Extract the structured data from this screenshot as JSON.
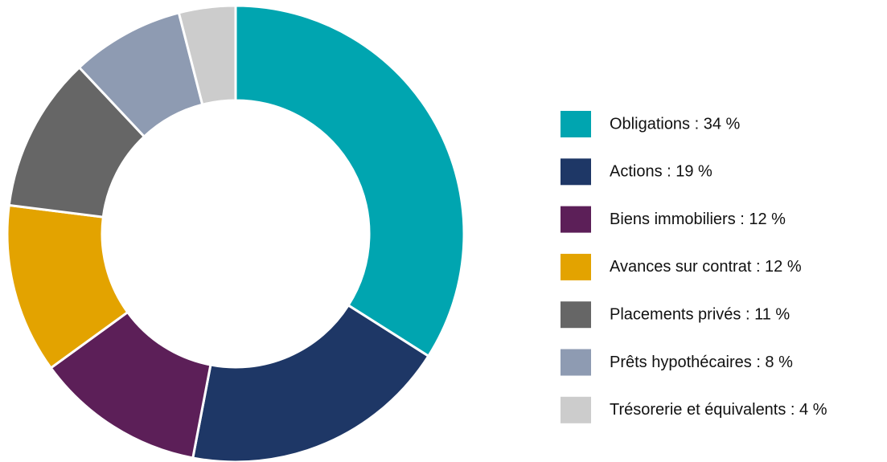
{
  "chart_data": {
    "type": "donut",
    "labels": [
      "Obligations : 34 %",
      "Actions : 19 %",
      "Biens immobiliers : 12 %",
      "Avances sur contrat : 12 %",
      "Placements privés : 11 %",
      "Prêts hypothécaires : 8 %",
      "Trésorerie et équivalents : 4 %"
    ],
    "values": [
      34,
      19,
      12,
      12,
      11,
      8,
      4
    ],
    "colors": [
      "#00a5b0",
      "#1e3766",
      "#5c1f58",
      "#e3a300",
      "#666666",
      "#8e9bb2",
      "#cccccc"
    ],
    "legend": "right"
  }
}
